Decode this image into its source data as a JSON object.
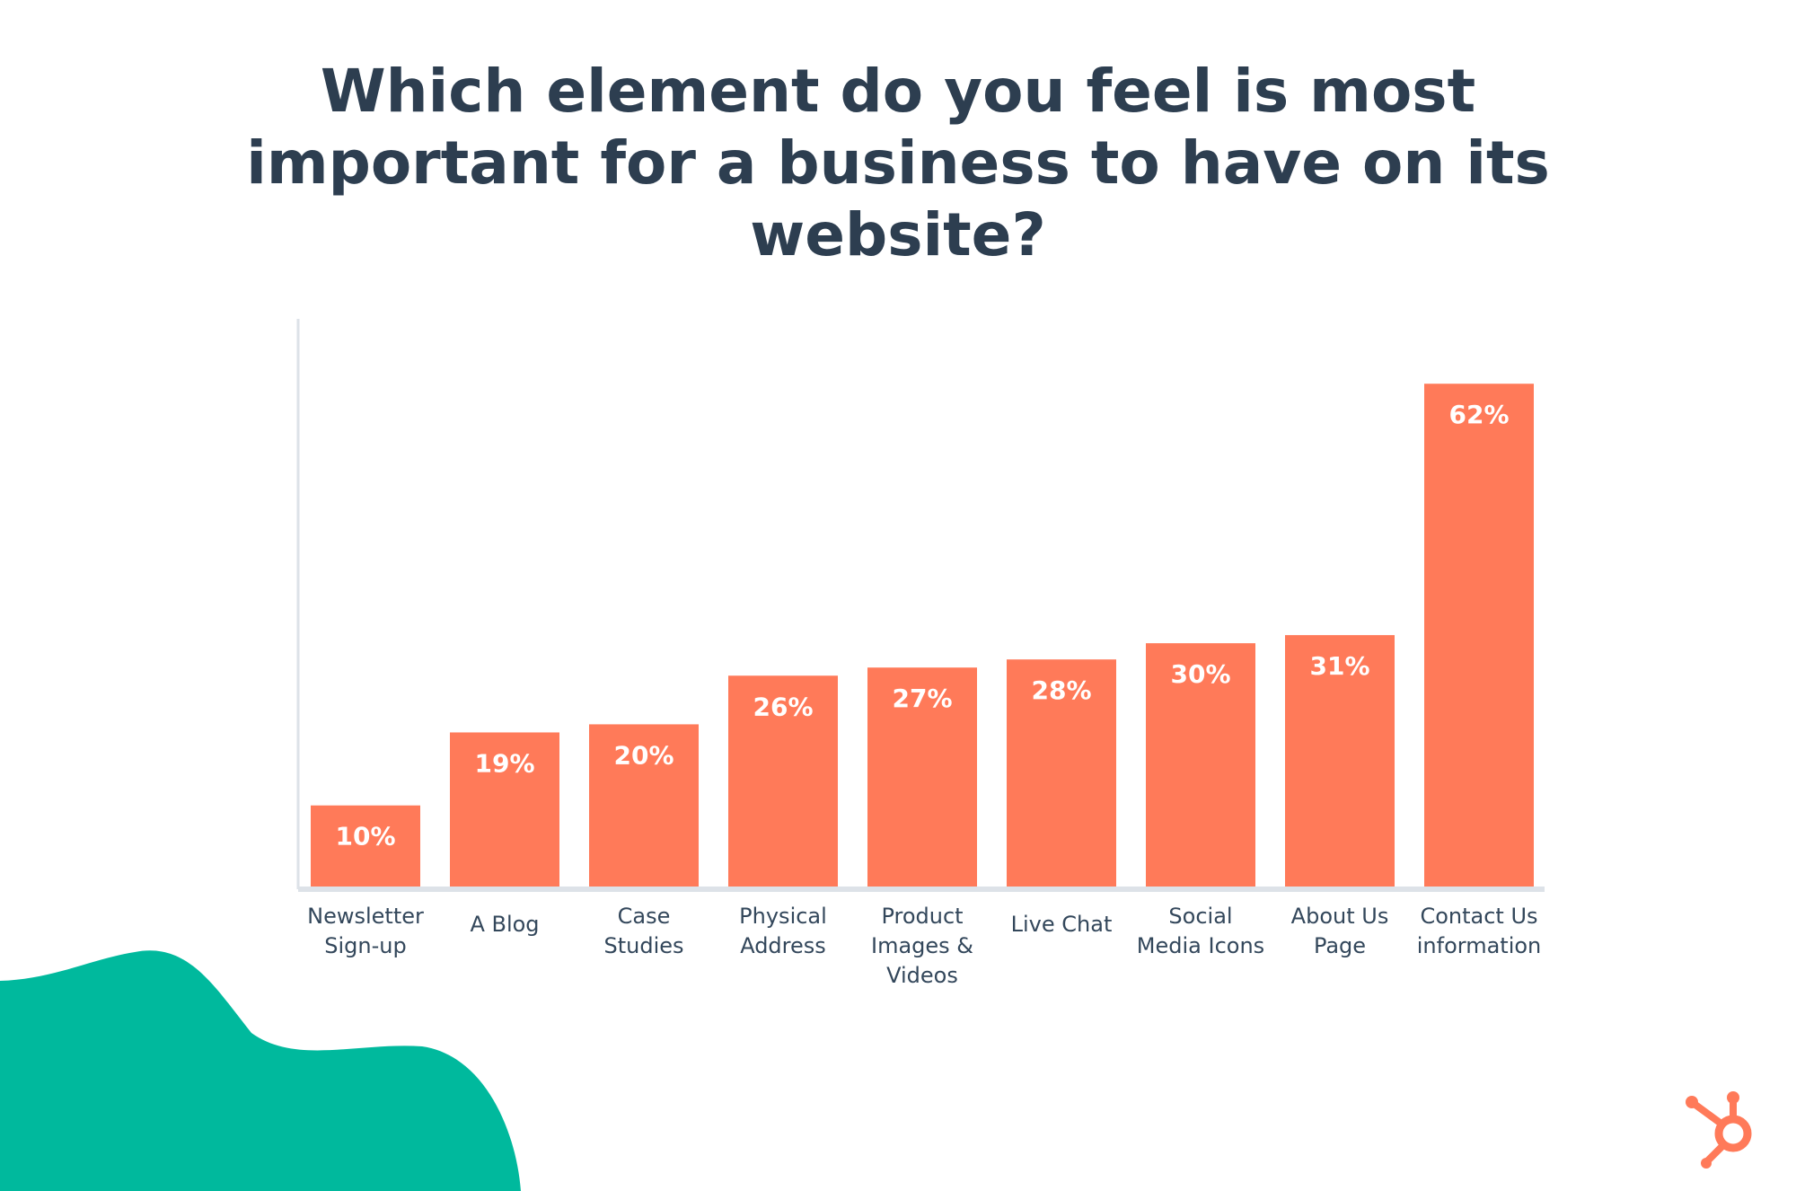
{
  "colors": {
    "bar": "#ff7a59",
    "title": "#2d3e50",
    "bar_label_on_bar": "#ffffff",
    "bar_label_above_bar": "#2d3e50",
    "category_label": "#33475b",
    "axis": "#dde2e8",
    "blob": "#00b99d",
    "logo": "#ff7a59"
  },
  "icons": {
    "logo": "hubspot-logo-icon"
  },
  "chart_data": {
    "type": "bar",
    "title_lines": [
      "Which element do you feel is most",
      "important for a business to have on its",
      "website?"
    ],
    "categories": [
      [
        "Newsletter",
        "Sign-up"
      ],
      [
        "A Blog"
      ],
      [
        "Case",
        "Studies"
      ],
      [
        "Physical",
        "Address"
      ],
      [
        "Product",
        "Images &",
        "Videos"
      ],
      [
        "Live Chat"
      ],
      [
        "Social",
        "Media Icons"
      ],
      [
        "About Us",
        "Page"
      ],
      [
        "Contact Us",
        "information"
      ]
    ],
    "values": [
      10,
      19,
      20,
      26,
      27,
      28,
      30,
      31,
      62
    ],
    "value_labels": [
      "10%",
      "19%",
      "20%",
      "26%",
      "27%",
      "28%",
      "30%",
      "31%",
      "62%"
    ],
    "ylim": [
      0,
      70
    ],
    "grid": false,
    "legend": "none"
  }
}
